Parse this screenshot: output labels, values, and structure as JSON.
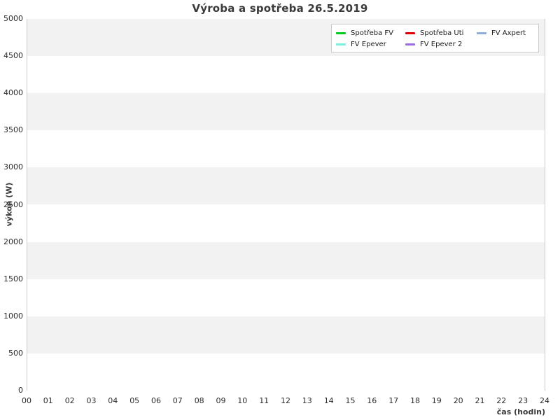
{
  "chart_data": {
    "type": "line",
    "title": "Výroba a spotřeba 26.5.2019",
    "xlabel": "čas (hodin)",
    "ylabel": "výkon (W)",
    "xlim": [
      0,
      24
    ],
    "ylim": [
      0,
      5000
    ],
    "x_tick_labels": [
      "00",
      "01",
      "02",
      "03",
      "04",
      "05",
      "06",
      "07",
      "08",
      "09",
      "10",
      "11",
      "12",
      "13",
      "14",
      "15",
      "16",
      "17",
      "18",
      "19",
      "20",
      "21",
      "22",
      "23",
      "24"
    ],
    "y_tick_values": [
      0,
      500,
      1000,
      1500,
      2000,
      2500,
      3000,
      3500,
      4000,
      4500,
      5000
    ],
    "grid": "horizontal-alternating-bands",
    "legend_position": "top-right",
    "series": [
      {
        "name": "Spotřeba FV",
        "color": "#00cc22",
        "values": []
      },
      {
        "name": "Spotřeba Uti",
        "color": "#e00000",
        "values": []
      },
      {
        "name": "FV Axpert",
        "color": "#8fadd8",
        "values": []
      },
      {
        "name": "FV Epever",
        "color": "#78f0e0",
        "values": []
      },
      {
        "name": "FV Epever 2",
        "color": "#9a6ce0",
        "values": []
      }
    ]
  },
  "style": {
    "band_color": "#f2f2f2",
    "plot_border_color": "#cccccc",
    "text_color": "#3a3a3a",
    "tick_color": "#2b2b2b",
    "background": "#ffffff"
  }
}
